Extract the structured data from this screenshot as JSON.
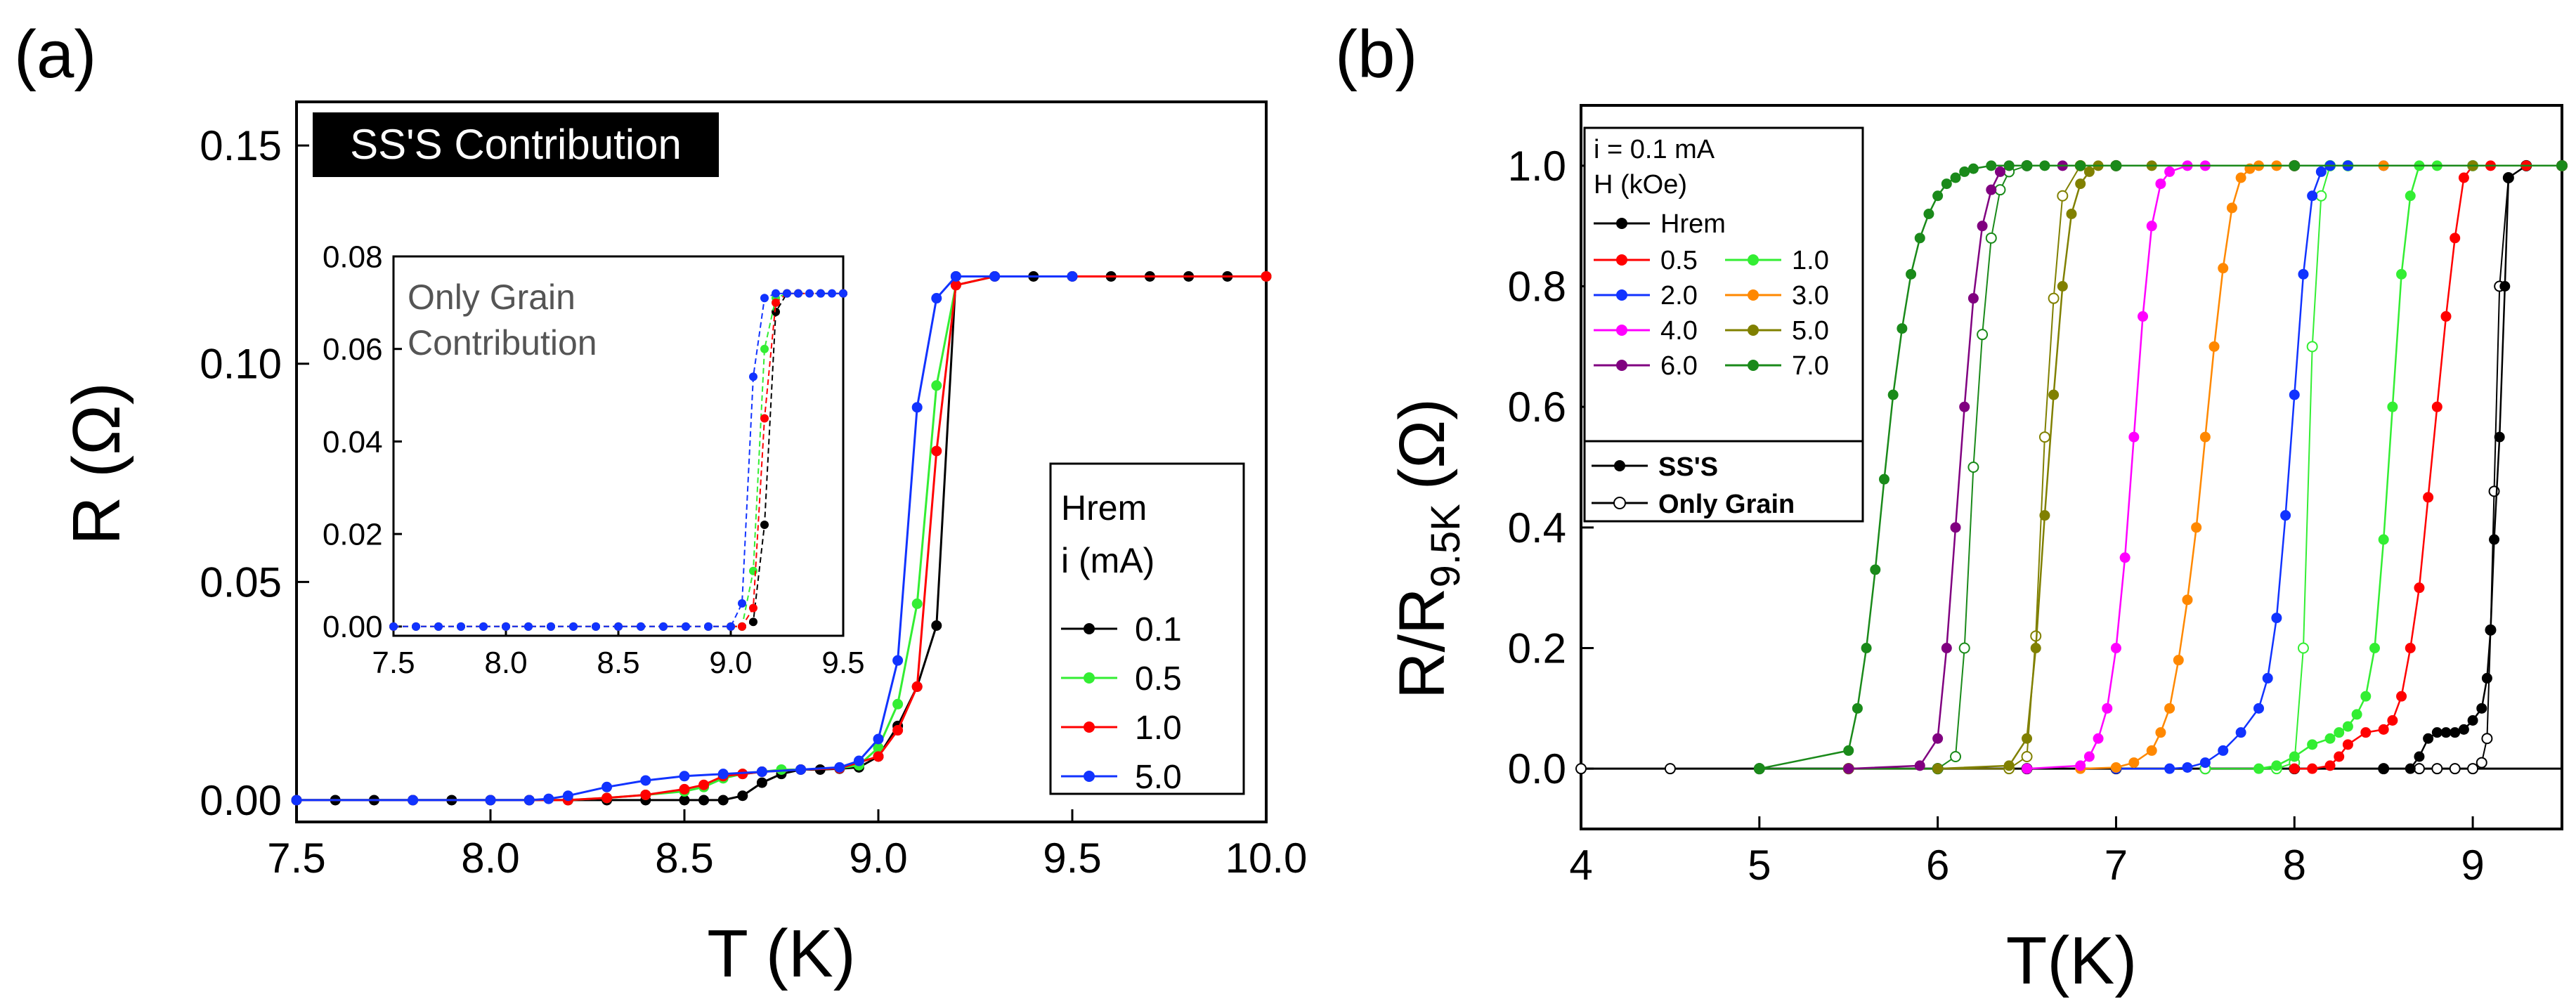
{
  "colors": {
    "axis": "#000000",
    "black": "#000000",
    "red": "#ff0000",
    "green": "#33ee33",
    "blue": "#1133ff",
    "orange": "#ff8800",
    "magenta": "#ff00ff",
    "olive": "#808000",
    "purple": "#800080",
    "darkgreen": "#1a8a1a",
    "labelbox_bg": "#000000",
    "labelbox_fg": "#ffffff",
    "inset_text": "#555555"
  },
  "chart_data": [
    {
      "panel": "a",
      "panel_label": "(a)",
      "type": "line",
      "title": "SS'S Contribution",
      "xlabel": "T (K)",
      "ylabel": "R (Ω)",
      "xlim": [
        7.5,
        10.0
      ],
      "ylim": [
        -0.005,
        0.16
      ],
      "xticks": [
        "7.5",
        "8.0",
        "8.5",
        "9.0",
        "9.5",
        "10.0"
      ],
      "yticks": [
        "0.00",
        "0.05",
        "0.10",
        "0.15"
      ],
      "legend_title": [
        "Hrem",
        "i (mA)"
      ],
      "legend_position": "right",
      "series": [
        {
          "name": "0.1",
          "color": "black",
          "x": [
            7.5,
            7.6,
            7.7,
            7.8,
            7.9,
            8.0,
            8.1,
            8.2,
            8.3,
            8.4,
            8.5,
            8.55,
            8.6,
            8.65,
            8.7,
            8.75,
            8.8,
            8.85,
            8.9,
            8.95,
            9.0,
            9.05,
            9.1,
            9.15,
            9.2,
            9.3,
            9.4,
            9.5,
            9.6,
            9.7,
            9.8,
            9.9,
            10.0
          ],
          "y": [
            0,
            0,
            0,
            0,
            0,
            0,
            0,
            0,
            0,
            0,
            0,
            0,
            0,
            0.001,
            0.004,
            0.006,
            0.007,
            0.007,
            0.0072,
            0.0075,
            0.01,
            0.017,
            0.026,
            0.04,
            0.12,
            0.12,
            0.12,
            0.12,
            0.12,
            0.12,
            0.12,
            0.12,
            0.12
          ]
        },
        {
          "name": "0.5",
          "color": "green",
          "x": [
            7.5,
            7.8,
            8.0,
            8.1,
            8.2,
            8.3,
            8.4,
            8.5,
            8.55,
            8.6,
            8.65,
            8.7,
            8.75,
            8.8,
            8.9,
            8.95,
            9.0,
            9.05,
            9.1,
            9.15,
            9.2,
            9.3,
            9.5,
            10.0
          ],
          "y": [
            0,
            0,
            0,
            0,
            0,
            0.0005,
            0.0012,
            0.002,
            0.003,
            0.005,
            0.006,
            0.0065,
            0.007,
            0.007,
            0.0073,
            0.008,
            0.012,
            0.022,
            0.045,
            0.095,
            0.118,
            0.12,
            0.12,
            0.12
          ]
        },
        {
          "name": "1.0",
          "color": "red",
          "x": [
            7.5,
            7.8,
            8.0,
            8.1,
            8.2,
            8.3,
            8.4,
            8.5,
            8.55,
            8.6,
            8.65,
            8.7,
            8.8,
            8.9,
            9.0,
            9.05,
            9.1,
            9.15,
            9.2,
            9.3,
            9.5,
            10.0
          ],
          "y": [
            0,
            0,
            0,
            0,
            0,
            0.0005,
            0.0012,
            0.0025,
            0.0035,
            0.0055,
            0.006,
            0.0065,
            0.007,
            0.0073,
            0.01,
            0.016,
            0.026,
            0.08,
            0.118,
            0.12,
            0.12,
            0.12
          ]
        },
        {
          "name": "5.0",
          "color": "blue",
          "x": [
            7.5,
            7.8,
            8.0,
            8.1,
            8.15,
            8.2,
            8.3,
            8.4,
            8.5,
            8.6,
            8.7,
            8.8,
            8.9,
            8.95,
            9.0,
            9.05,
            9.1,
            9.15,
            9.2,
            9.3,
            9.5
          ],
          "y": [
            0,
            0,
            0,
            0,
            0.0003,
            0.001,
            0.003,
            0.0045,
            0.0055,
            0.006,
            0.0065,
            0.007,
            0.0075,
            0.009,
            0.014,
            0.032,
            0.09,
            0.115,
            0.12,
            0.12,
            0.12
          ]
        }
      ],
      "inset": {
        "label": [
          "Only Grain",
          "Contribution"
        ],
        "xlim": [
          7.5,
          9.5
        ],
        "ylim": [
          -0.002,
          0.08
        ],
        "xticks": [
          "7.5",
          "8.0",
          "8.5",
          "9.0",
          "9.5"
        ],
        "yticks": [
          "0.00",
          "0.02",
          "0.04",
          "0.06",
          "0.08"
        ],
        "series": [
          {
            "name": "0.1",
            "color": "black",
            "x": [
              7.5,
              7.6,
              7.7,
              7.8,
              7.9,
              8.0,
              8.1,
              8.2,
              8.3,
              8.4,
              8.5,
              8.6,
              8.7,
              8.8,
              8.9,
              9.0,
              9.05,
              9.1,
              9.15,
              9.2,
              9.25,
              9.3,
              9.4,
              9.5
            ],
            "y": [
              0,
              0,
              0,
              0,
              0,
              0,
              0,
              0,
              0,
              0,
              0,
              0,
              0,
              0,
              0,
              0,
              0,
              0.001,
              0.022,
              0.068,
              0.072,
              0.072,
              0.072,
              0.072
            ]
          },
          {
            "name": "0.5",
            "color": "green",
            "x": [
              7.5,
              8.0,
              8.5,
              9.0,
              9.05,
              9.1,
              9.15,
              9.2,
              9.25,
              9.3,
              9.5
            ],
            "y": [
              0,
              0,
              0,
              0,
              0,
              0.012,
              0.06,
              0.071,
              0.072,
              0.072,
              0.072
            ]
          },
          {
            "name": "1.0",
            "color": "red",
            "x": [
              7.5,
              8.0,
              8.5,
              9.0,
              9.05,
              9.1,
              9.15,
              9.2,
              9.25,
              9.3,
              9.5
            ],
            "y": [
              0,
              0,
              0,
              0,
              0,
              0.004,
              0.045,
              0.07,
              0.072,
              0.072,
              0.072
            ]
          },
          {
            "name": "5.0",
            "color": "blue",
            "x": [
              7.5,
              7.6,
              7.7,
              7.8,
              7.9,
              8.0,
              8.1,
              8.2,
              8.3,
              8.4,
              8.5,
              8.6,
              8.7,
              8.8,
              8.9,
              9.0,
              9.05,
              9.1,
              9.15,
              9.2,
              9.25,
              9.3,
              9.35,
              9.4,
              9.45,
              9.5
            ],
            "y": [
              0,
              0,
              0,
              0,
              0,
              0,
              0,
              0,
              0,
              0,
              0,
              0,
              0,
              0,
              0,
              0,
              0.005,
              0.054,
              0.071,
              0.072,
              0.072,
              0.072,
              0.072,
              0.072,
              0.072,
              0.072
            ]
          }
        ]
      }
    },
    {
      "panel": "b",
      "panel_label": "(b)",
      "type": "line",
      "xlabel": "T(K)",
      "ylabel": "R/R",
      "ylabel_sub": "9.5K",
      "ylabel_unit": "(Ω)",
      "xlim": [
        4,
        9.5
      ],
      "ylim": [
        -0.1,
        1.1
      ],
      "xticks": [
        "4",
        "5",
        "6",
        "7",
        "8",
        "9"
      ],
      "yticks": [
        "0.0",
        "0.2",
        "0.4",
        "0.6",
        "0.8",
        "1.0"
      ],
      "legend_header": [
        "i = 0.1 mA",
        "H (kOe)"
      ],
      "legend_position": "top-left",
      "legend_markers": [
        "SS'S",
        "Only Grain"
      ],
      "series": [
        {
          "name": "Hrem",
          "color": "black",
          "filled": true,
          "x": [
            8.5,
            8.65,
            8.7,
            8.75,
            8.8,
            8.85,
            8.9,
            8.95,
            9.0,
            9.05,
            9.08,
            9.1,
            9.12,
            9.15,
            9.18,
            9.2,
            9.3,
            9.5
          ],
          "y": [
            0,
            0,
            0.02,
            0.05,
            0.06,
            0.06,
            0.06,
            0.065,
            0.08,
            0.1,
            0.15,
            0.23,
            0.38,
            0.55,
            0.8,
            0.98,
            1.0,
            1.0
          ]
        },
        {
          "name": "0.5",
          "color": "red",
          "filled": true,
          "x": [
            8.0,
            8.1,
            8.2,
            8.25,
            8.3,
            8.4,
            8.5,
            8.55,
            8.6,
            8.65,
            8.7,
            8.75,
            8.8,
            8.85,
            8.9,
            8.95,
            9.0,
            9.1,
            9.3,
            9.5
          ],
          "y": [
            0,
            0,
            0.005,
            0.02,
            0.04,
            0.06,
            0.065,
            0.08,
            0.12,
            0.2,
            0.3,
            0.45,
            0.6,
            0.75,
            0.88,
            0.98,
            1.0,
            1.0,
            1.0,
            1.0
          ]
        },
        {
          "name": "1.0",
          "color": "green",
          "filled": true,
          "x": [
            7.8,
            7.9,
            8.0,
            8.1,
            8.2,
            8.25,
            8.3,
            8.35,
            8.4,
            8.45,
            8.5,
            8.55,
            8.6,
            8.65,
            8.7,
            8.8,
            9.0,
            9.5
          ],
          "y": [
            0,
            0.005,
            0.02,
            0.04,
            0.05,
            0.06,
            0.07,
            0.09,
            0.12,
            0.2,
            0.38,
            0.6,
            0.82,
            0.95,
            1.0,
            1.0,
            1.0,
            1.0
          ]
        },
        {
          "name": "2.0",
          "color": "blue",
          "filled": true,
          "x": [
            7.0,
            7.3,
            7.4,
            7.5,
            7.6,
            7.7,
            7.8,
            7.85,
            7.9,
            7.95,
            8.0,
            8.05,
            8.1,
            8.15,
            8.2,
            8.3,
            8.5,
            9.0,
            9.5
          ],
          "y": [
            0,
            0,
            0.002,
            0.01,
            0.03,
            0.06,
            0.1,
            0.15,
            0.25,
            0.42,
            0.62,
            0.82,
            0.95,
            0.99,
            1.0,
            1.0,
            1.0,
            1.0,
            1.0
          ]
        },
        {
          "name": "3.0",
          "color": "orange",
          "filled": true,
          "x": [
            6.8,
            7.0,
            7.1,
            7.2,
            7.25,
            7.3,
            7.35,
            7.4,
            7.45,
            7.5,
            7.55,
            7.6,
            7.65,
            7.7,
            7.75,
            7.8,
            7.9,
            8.0,
            8.5,
            9.0,
            9.5
          ],
          "y": [
            0,
            0.002,
            0.01,
            0.03,
            0.06,
            0.1,
            0.18,
            0.28,
            0.4,
            0.55,
            0.7,
            0.83,
            0.93,
            0.98,
            0.995,
            1.0,
            1.0,
            1.0,
            1.0,
            1.0,
            1.0
          ]
        },
        {
          "name": "4.0",
          "color": "magenta",
          "filled": true,
          "x": [
            6.5,
            6.8,
            6.85,
            6.9,
            6.95,
            7.0,
            7.05,
            7.1,
            7.15,
            7.2,
            7.25,
            7.3,
            7.4,
            7.5,
            8.0,
            9.0,
            9.5
          ],
          "y": [
            0,
            0.005,
            0.02,
            0.05,
            0.1,
            0.2,
            0.35,
            0.55,
            0.75,
            0.9,
            0.97,
            0.99,
            1.0,
            1.0,
            1.0,
            1.0,
            1.0
          ]
        },
        {
          "name": "5.0",
          "color": "olive",
          "filled": true,
          "x": [
            6.0,
            6.4,
            6.5,
            6.55,
            6.6,
            6.65,
            6.7,
            6.75,
            6.8,
            6.85,
            6.9,
            7.0,
            7.2,
            8.0,
            9.0,
            9.5
          ],
          "y": [
            0,
            0.005,
            0.05,
            0.2,
            0.42,
            0.62,
            0.8,
            0.92,
            0.97,
            0.99,
            1.0,
            1.0,
            1.0,
            1.0,
            1.0,
            1.0
          ]
        },
        {
          "name": "6.0",
          "color": "purple",
          "filled": true,
          "x": [
            5.5,
            5.9,
            6.0,
            6.05,
            6.1,
            6.15,
            6.2,
            6.25,
            6.3,
            6.35,
            6.4,
            6.5,
            6.7,
            7.0,
            8.0,
            9.5
          ],
          "y": [
            0,
            0.005,
            0.05,
            0.2,
            0.4,
            0.6,
            0.78,
            0.9,
            0.96,
            0.99,
            1.0,
            1.0,
            1.0,
            1.0,
            1.0,
            1.0
          ]
        },
        {
          "name": "7.0",
          "color": "darkgreen",
          "filled": true,
          "x": [
            5.0,
            5.5,
            5.55,
            5.6,
            5.65,
            5.7,
            5.75,
            5.8,
            5.85,
            5.9,
            5.95,
            6.0,
            6.05,
            6.1,
            6.15,
            6.2,
            6.3,
            6.4,
            6.5,
            6.6,
            6.8,
            7.0,
            8.0,
            9.5
          ],
          "y": [
            0,
            0.03,
            0.1,
            0.2,
            0.33,
            0.48,
            0.62,
            0.73,
            0.82,
            0.88,
            0.92,
            0.95,
            0.97,
            0.98,
            0.99,
            0.995,
            1.0,
            1.0,
            1.0,
            1.0,
            1.0,
            1.0,
            1.0,
            1.0
          ]
        }
      ],
      "hollow_series": [
        {
          "name": "Only Grain Hrem",
          "color": "black",
          "x": [
            4.0,
            4.5,
            5.0,
            5.5,
            6.0,
            6.5,
            7.0,
            7.5,
            8.0,
            8.5,
            8.7,
            8.8,
            8.9,
            9.0,
            9.05,
            9.08,
            9.1,
            9.12,
            9.15,
            9.2,
            9.3,
            9.5
          ],
          "y": [
            0,
            0,
            0,
            0,
            0,
            0,
            0,
            0,
            0,
            0,
            0,
            0,
            0,
            0,
            0.01,
            0.05,
            0.23,
            0.46,
            0.8,
            0.98,
            1.0,
            1.0
          ]
        },
        {
          "name": "Only Grain 1.0",
          "color": "green",
          "x": [
            7.5,
            7.9,
            8.0,
            8.05,
            8.1,
            8.15,
            8.2,
            8.3,
            9.0,
            9.5
          ],
          "y": [
            0,
            0,
            0.01,
            0.2,
            0.7,
            0.95,
            1.0,
            1.0,
            1.0,
            1.0
          ]
        },
        {
          "name": "Only Grain 5.0",
          "color": "olive",
          "x": [
            5.5,
            6.4,
            6.5,
            6.55,
            6.6,
            6.65,
            6.7,
            6.8,
            7.0,
            8.0,
            9.5
          ],
          "y": [
            0,
            0,
            0.02,
            0.22,
            0.55,
            0.78,
            0.95,
            1.0,
            1.0,
            1.0,
            1.0
          ]
        },
        {
          "name": "Only Grain 7.0",
          "color": "darkgreen",
          "x": [
            5.0,
            6.0,
            6.1,
            6.15,
            6.2,
            6.25,
            6.3,
            6.35,
            6.4,
            6.5,
            7.0,
            8.0,
            9.5
          ],
          "y": [
            0,
            0,
            0.02,
            0.2,
            0.5,
            0.72,
            0.88,
            0.96,
            0.99,
            1.0,
            1.0,
            1.0,
            1.0
          ]
        }
      ]
    }
  ]
}
